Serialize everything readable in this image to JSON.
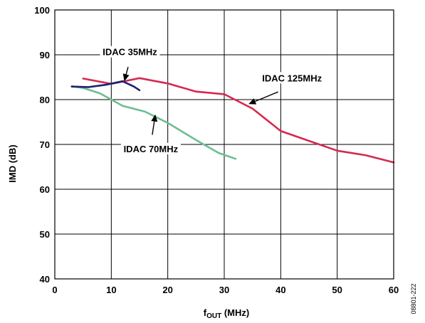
{
  "chart_data": {
    "type": "line",
    "xlabel_main": "f",
    "xlabel_sub": "OUT",
    "xlabel_unit": " (MHz)",
    "ylabel": "IMD (dB)",
    "xlim": [
      0,
      60
    ],
    "ylim": [
      40,
      100
    ],
    "xticks": [
      0,
      10,
      20,
      30,
      40,
      50,
      60
    ],
    "yticks": [
      40,
      50,
      60,
      70,
      80,
      90,
      100
    ],
    "grid": true,
    "figure_id": "08801-222",
    "series": [
      {
        "name": "IDAC 125MHz",
        "color": "#d6294f",
        "points": [
          [
            5,
            84.7
          ],
          [
            10,
            83.5
          ],
          [
            15,
            84.8
          ],
          [
            20,
            83.6
          ],
          [
            25,
            81.8
          ],
          [
            30,
            81.2
          ],
          [
            35,
            78.0
          ],
          [
            40,
            73.0
          ],
          [
            45,
            70.8
          ],
          [
            50,
            68.6
          ],
          [
            55,
            67.6
          ],
          [
            60,
            66.0
          ]
        ]
      },
      {
        "name": "IDAC 70MHz",
        "color": "#6ebd92",
        "points": [
          [
            3,
            83.0
          ],
          [
            5,
            82.6
          ],
          [
            8,
            81.4
          ],
          [
            12,
            78.6
          ],
          [
            16,
            77.3
          ],
          [
            20,
            74.8
          ],
          [
            25,
            71.0
          ],
          [
            29,
            68.1
          ],
          [
            32,
            66.8
          ]
        ]
      },
      {
        "name": "IDAC 35MHz",
        "color": "#1c2370",
        "points": [
          [
            3,
            82.9
          ],
          [
            6,
            82.8
          ],
          [
            9,
            83.3
          ],
          [
            12,
            84.1
          ],
          [
            14,
            82.9
          ],
          [
            15,
            82.1
          ]
        ]
      }
    ],
    "annotations": [
      {
        "text": "IDAC 35MHz",
        "series": "IDAC 35MHz",
        "x": 13.3,
        "y": 90.2,
        "arrow_to": [
          12.3,
          84.1
        ]
      },
      {
        "text": "IDAC 70MHz",
        "series": "IDAC 70MHz",
        "x": 17.0,
        "y": 68.6,
        "arrow_to": [
          17.8,
          76.7
        ]
      },
      {
        "text": "IDAC 125MHz",
        "series": "IDAC 125MHz",
        "x": 42.0,
        "y": 84.4,
        "arrow_to": [
          34.3,
          79.0
        ]
      }
    ]
  }
}
